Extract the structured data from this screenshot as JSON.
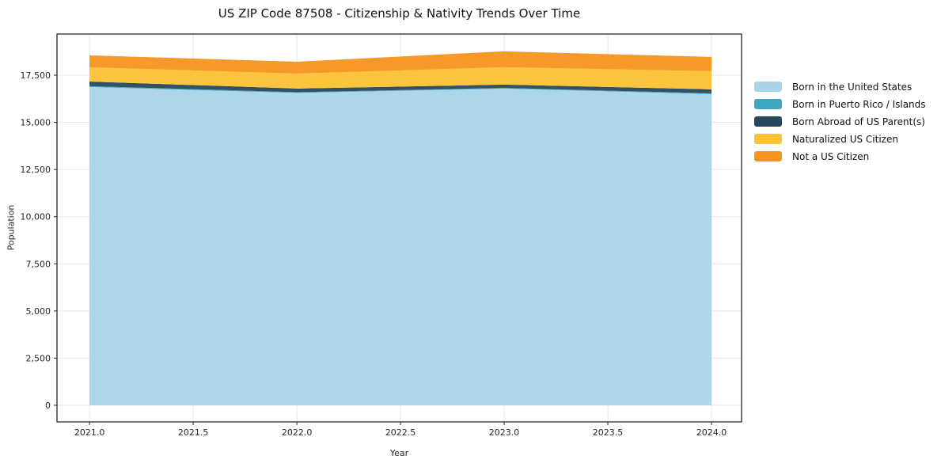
{
  "title": "US ZIP Code 87508 - Citizenship & Nativity Trends Over Time",
  "axes": {
    "x_label": "Year",
    "y_label": "Population",
    "x_tick_values": [
      2021.0,
      2021.5,
      2022.0,
      2022.5,
      2023.0,
      2023.5,
      2024.0
    ],
    "x_tick_labels": [
      "2021.0",
      "2021.5",
      "2022.0",
      "2022.5",
      "2023.0",
      "2023.5",
      "2024.0"
    ],
    "y_tick_values": [
      0,
      2500,
      5000,
      7500,
      10000,
      12500,
      15000,
      17500
    ],
    "y_tick_labels": [
      "0",
      "2,500",
      "5,000",
      "7,500",
      "10,000",
      "12,500",
      "15,000",
      "17,500"
    ]
  },
  "colors": {
    "spine": "#262626",
    "gridline": "#e7e7e7",
    "tick_text": "#262626",
    "background": "#ffffff"
  },
  "chart_data": {
    "type": "area",
    "stacked": true,
    "title": "US ZIP Code 87508 - Citizenship & Nativity Trends Over Time",
    "xlabel": "Year",
    "ylabel": "Population",
    "x": [
      2021,
      2022,
      2023,
      2024
    ],
    "series": [
      {
        "name": "Born in the United States",
        "color": "#A9D4E8",
        "values": [
          16870,
          16560,
          16790,
          16495
        ]
      },
      {
        "name": "Born in Puerto Rico / Islands",
        "color": "#41A6C2",
        "values": [
          50,
          40,
          35,
          45
        ]
      },
      {
        "name": "Born Abroad of US Parent(s)",
        "color": "#27485C",
        "values": [
          245,
          190,
          175,
          210
        ]
      },
      {
        "name": "Naturalized US Citizen",
        "color": "#FCC233",
        "values": [
          755,
          795,
          925,
          965
        ]
      },
      {
        "name": "Not a US Citizen",
        "color": "#F5941F",
        "values": [
          630,
          630,
          840,
          755
        ]
      }
    ],
    "totals": [
      18550,
      18215,
      18765,
      18470
    ],
    "xlim": [
      2020.843,
      2024.145
    ],
    "ylim": [
      -881,
      19682
    ],
    "grid": true,
    "legend_position": "right"
  }
}
